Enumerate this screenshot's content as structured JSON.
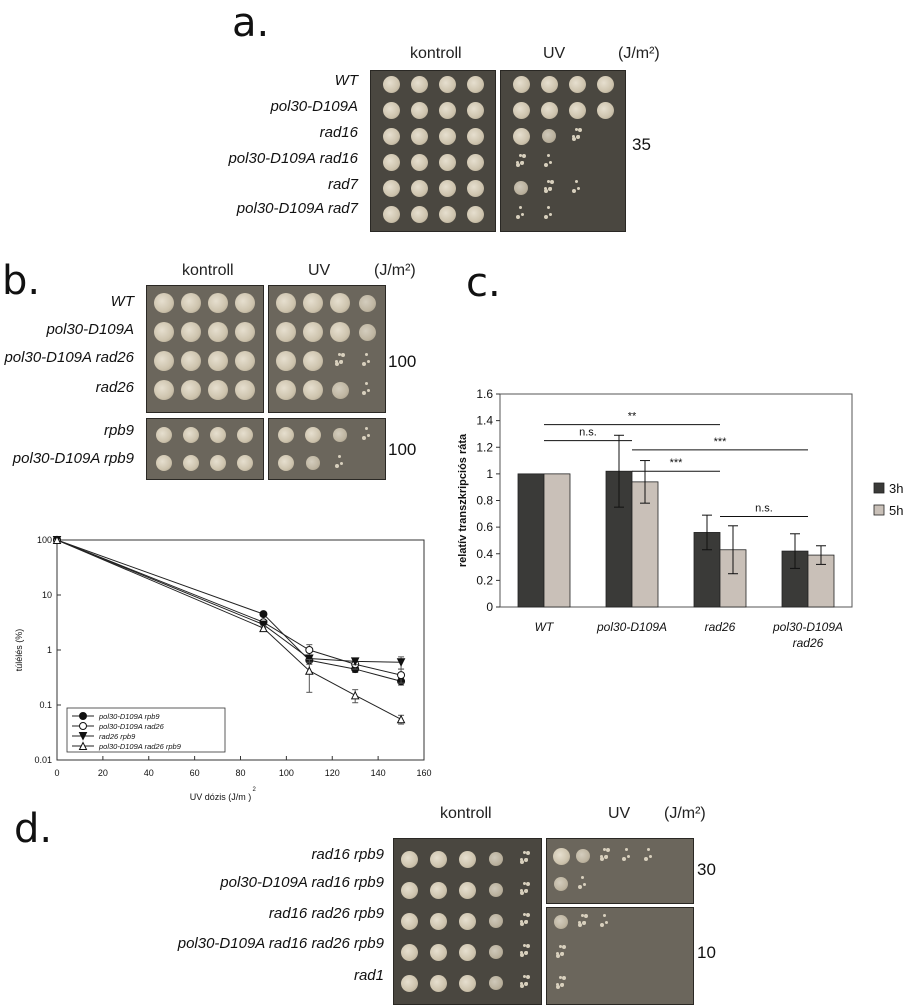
{
  "panels": {
    "a": {
      "letter": "a.",
      "col_headers": [
        "kontroll",
        "UV",
        "(J/m²)"
      ],
      "strains": [
        "WT",
        "pol30-D109A",
        "rad16",
        "pol30-D109A rad16",
        "rad7",
        "pol30-D109A rad7"
      ],
      "dose": "35",
      "growth_control": [
        [
          4,
          4,
          4,
          4
        ],
        [
          4,
          4,
          4,
          4
        ],
        [
          4,
          4,
          4,
          4
        ],
        [
          4,
          4,
          4,
          4
        ],
        [
          4,
          4,
          4,
          4
        ],
        [
          4,
          4,
          4,
          4
        ]
      ],
      "growth_uv": [
        [
          4,
          4,
          4,
          4
        ],
        [
          4,
          4,
          4,
          4
        ],
        [
          4,
          3,
          2,
          0
        ],
        [
          2,
          1,
          0,
          0
        ],
        [
          3,
          2,
          1,
          0
        ],
        [
          1,
          1,
          0,
          0
        ]
      ]
    },
    "b": {
      "letter": "b.",
      "col_headers": [
        "kontroll",
        "UV",
        "(J/m²)"
      ],
      "strains_top": [
        "WT",
        "pol30-D109A",
        "pol30-D109A rad26",
        "rad26"
      ],
      "strains_bottom": [
        "rpb9",
        "pol30-D109A rpb9"
      ],
      "dose_top": "100",
      "dose_bottom": "100",
      "growth_control_top": [
        [
          4,
          4,
          4,
          4
        ],
        [
          4,
          4,
          4,
          4
        ],
        [
          4,
          4,
          4,
          4
        ],
        [
          4,
          4,
          4,
          4
        ]
      ],
      "growth_uv_top": [
        [
          4,
          4,
          4,
          3
        ],
        [
          4,
          4,
          4,
          3
        ],
        [
          4,
          4,
          2,
          1
        ],
        [
          4,
          4,
          3,
          1
        ]
      ],
      "growth_control_bottom": [
        [
          4,
          4,
          4,
          4
        ],
        [
          4,
          4,
          4,
          4
        ]
      ],
      "growth_uv_bottom": [
        [
          4,
          4,
          3,
          1
        ],
        [
          4,
          3,
          1,
          0
        ]
      ]
    },
    "c": {
      "letter": "c.",
      "chart_data": {
        "type": "bar",
        "categories": [
          "WT",
          "pol30-D109A",
          "rad26",
          "pol30-D109A\nrad26"
        ],
        "category_lines": [
          [
            "WT"
          ],
          [
            "pol30-D109A"
          ],
          [
            "rad26"
          ],
          [
            "pol30-D109A",
            "rad26"
          ]
        ],
        "series": [
          {
            "name": "3h",
            "values": [
              1.0,
              1.02,
              0.56,
              0.42
            ],
            "errors": [
              0,
              0.27,
              0.13,
              0.13
            ],
            "color": "#3a3a38"
          },
          {
            "name": "5h",
            "values": [
              1.0,
              0.94,
              0.43,
              0.39
            ],
            "errors": [
              0,
              0.16,
              0.18,
              0.07
            ],
            "color": "#c9c0b8"
          }
        ],
        "ylabel": "relatív transzkripciós ráta",
        "ylim": [
          0,
          1.6
        ],
        "yticks": [
          "0",
          "0.2",
          "0.4",
          "0.6",
          "0.8",
          "1",
          "1.2",
          "1.4",
          "1.6"
        ],
        "grid": false,
        "legend_position": "right",
        "significance": [
          {
            "label": "**",
            "from": 0,
            "to": 2,
            "y": 1.37
          },
          {
            "label": "n.s.",
            "from": 0,
            "to": 1,
            "y": 1.25
          },
          {
            "label": "***",
            "from": 1,
            "to": 3,
            "y": 1.18
          },
          {
            "label": "***",
            "from": 1,
            "to": 2,
            "y": 1.02
          },
          {
            "label": "n.s.",
            "from": 2,
            "to": 3,
            "y": 0.68
          }
        ]
      }
    },
    "survival": {
      "chart_data": {
        "type": "line",
        "xlabel": "UV dózis (J/m",
        "xlabel_sup": "2",
        "xlabel_close": ")",
        "ylabel": "túlélés (%)",
        "xlim": [
          0,
          160
        ],
        "ylim": [
          0.01,
          100
        ],
        "ylog": true,
        "xticks": [
          "0",
          "20",
          "40",
          "60",
          "80",
          "100",
          "120",
          "140",
          "160"
        ],
        "yticks": [
          "0.01",
          "0.1",
          "1",
          "10",
          "100"
        ],
        "x": [
          0,
          90,
          110,
          130,
          150
        ],
        "legend_position": "bottom-left",
        "series": [
          {
            "name": "pol30-D109A rpb9",
            "marker": "filled-circle",
            "values": [
              100,
              4.5,
              0.65,
              0.45,
              0.27
            ],
            "errors": [
              0,
              0.4,
              0.1,
              0.06,
              0.04
            ]
          },
          {
            "name": "pol30-D109A rad26",
            "marker": "open-circle",
            "values": [
              100,
              3.2,
              1.0,
              0.55,
              0.35
            ],
            "errors": [
              0,
              0.3,
              0.25,
              0.1,
              0.1
            ]
          },
          {
            "name": "rad26 rpb9",
            "marker": "filled-triangle-down",
            "values": [
              100,
              2.9,
              0.7,
              0.62,
              0.6
            ],
            "errors": [
              0,
              0.3,
              0.1,
              0.08,
              0.15
            ]
          },
          {
            "name": "pol30-D109A rad26 rpb9",
            "marker": "open-triangle-up",
            "values": [
              100,
              2.5,
              0.42,
              0.15,
              0.055
            ],
            "errors": [
              0,
              0.25,
              0.25,
              0.04,
              0.01
            ]
          }
        ]
      }
    },
    "d": {
      "letter": "d.",
      "col_headers": [
        "kontroll",
        "UV",
        "(J/m²)"
      ],
      "strains": [
        "rad16 rpb9",
        "pol30-D109A rad16 rpb9",
        "rad16 rad26 rpb9",
        "pol30-D109A rad16 rad26 rpb9",
        "rad1"
      ],
      "dose_top": "30",
      "dose_bottom": "10",
      "growth_control": [
        [
          4,
          4,
          4,
          3,
          2
        ],
        [
          4,
          4,
          4,
          3,
          2
        ],
        [
          4,
          4,
          4,
          3,
          2
        ],
        [
          4,
          4,
          4,
          3,
          2
        ],
        [
          4,
          4,
          4,
          3,
          2
        ]
      ],
      "growth_uv": [
        [
          4,
          3,
          2,
          1,
          1
        ],
        [
          3,
          1,
          0,
          0,
          0
        ],
        [
          3,
          2,
          1,
          0,
          0
        ],
        [
          2,
          0,
          0,
          0,
          0
        ],
        [
          2,
          0,
          0,
          0,
          0
        ]
      ]
    }
  }
}
